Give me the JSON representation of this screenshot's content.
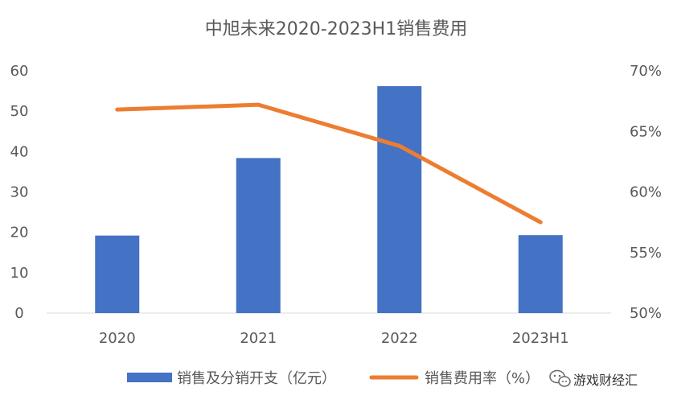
{
  "chart_data": {
    "type": "bar",
    "title": "中旭未来2020-2023H1销售费用",
    "categories": [
      "2020",
      "2021",
      "2022",
      "2023H1"
    ],
    "series": [
      {
        "name": "销售及分销开支（亿元）",
        "type": "bar",
        "axis": "left",
        "color": "#4472C4",
        "values": [
          19.2,
          38.4,
          56.2,
          19.3
        ]
      },
      {
        "name": "销售费用率（%）",
        "type": "line",
        "axis": "right",
        "color": "#ED7D31",
        "values": [
          66.8,
          67.2,
          63.8,
          57.5
        ]
      }
    ],
    "y_left": {
      "ylim": [
        0,
        60
      ],
      "ticks": [
        "0",
        "10",
        "20",
        "30",
        "40",
        "50",
        "60"
      ]
    },
    "y_right": {
      "ylim": [
        50,
        70
      ],
      "ticks": [
        "50%",
        "55%",
        "60%",
        "65%",
        "70%"
      ]
    },
    "grid": false,
    "legend_position": "bottom"
  },
  "watermark": {
    "text": "游戏财经汇",
    "icon": "wechat-icon"
  }
}
